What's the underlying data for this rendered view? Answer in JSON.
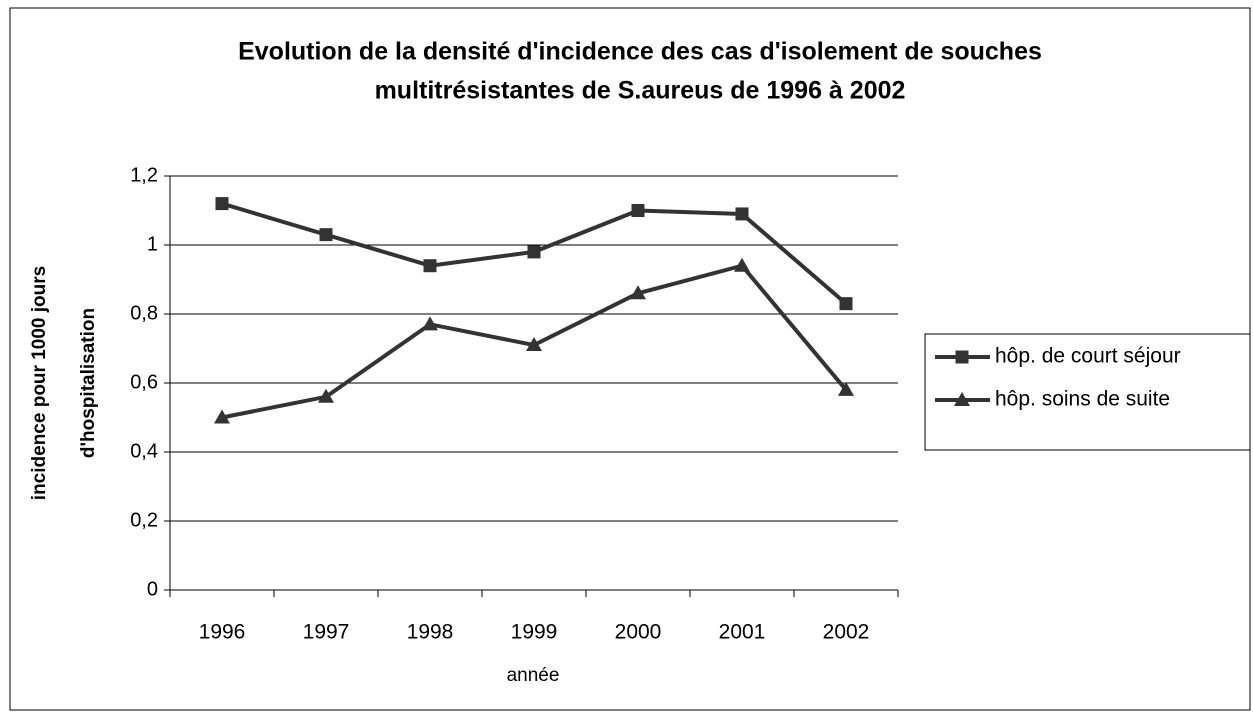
{
  "chart_data": {
    "type": "line",
    "title": [
      "Evolution de la densité d'incidence des cas d'isolement de souches",
      "multitrésistantes de S.aureus de 1996 à 2002"
    ],
    "xlabel": "année",
    "ylabel": [
      "incidence pour 1000 jours",
      "d'hospitalisation"
    ],
    "categories": [
      "1996",
      "1997",
      "1998",
      "1999",
      "2000",
      "2001",
      "2002"
    ],
    "series": [
      {
        "name": "hôp. de court séjour",
        "color": "#333333",
        "marker": "square",
        "values": [
          1.12,
          1.03,
          0.94,
          0.98,
          1.1,
          1.09,
          0.83
        ]
      },
      {
        "name": "hôp. soins de suite",
        "color": "#333333",
        "marker": "triangle",
        "values": [
          0.5,
          0.56,
          0.77,
          0.71,
          0.86,
          0.94,
          0.58
        ]
      }
    ],
    "ylim": [
      0,
      1.2
    ],
    "yticks": [
      0,
      {
        "value": 0.2,
        "label": "0,2"
      },
      {
        "value": 0.4,
        "label": "0,4"
      },
      {
        "value": 0.6,
        "label": "0,6"
      },
      {
        "value": 0.8,
        "label": "0,8"
      },
      1,
      {
        "value": 1.2,
        "label": "1,2"
      }
    ],
    "grid": true,
    "legend": "right"
  }
}
